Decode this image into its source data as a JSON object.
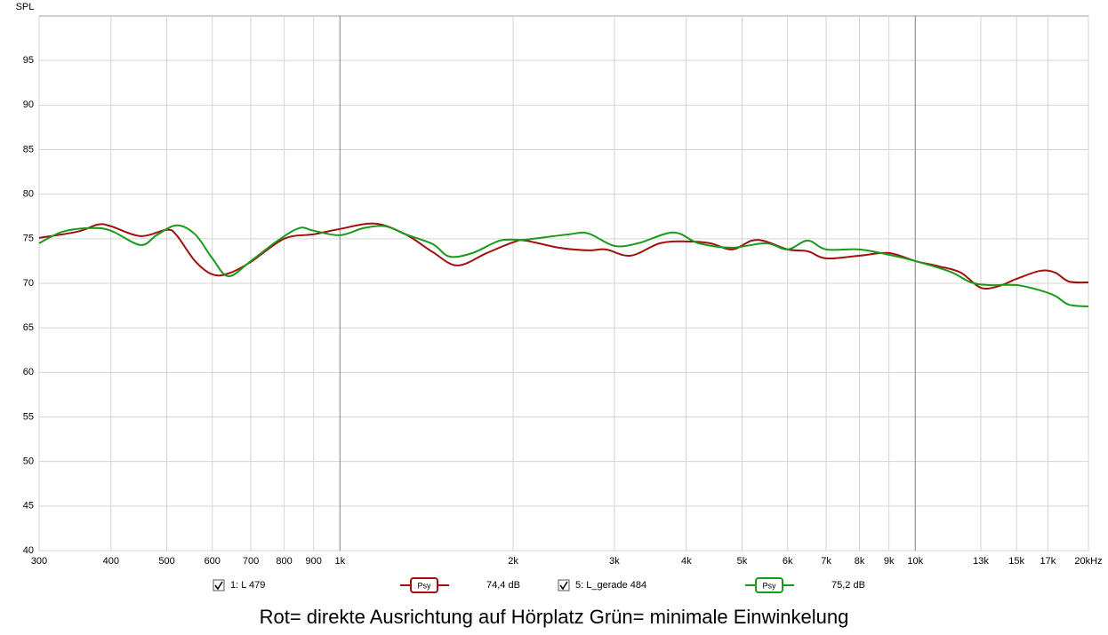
{
  "chart_data": {
    "type": "line",
    "y_label": "SPL",
    "caption": "Rot= direkte Ausrichtung auf Hörplatz Grün= minimale Einwinkelung",
    "log_x": true,
    "grid": true,
    "xlim": [
      300,
      20000
    ],
    "ylim": [
      40,
      100
    ],
    "xticks": [
      300,
      400,
      500,
      600,
      700,
      800,
      900,
      {
        "value": 1000,
        "label": "1k"
      },
      {
        "value": 2000,
        "label": "2k"
      },
      {
        "value": 3000,
        "label": "3k"
      },
      {
        "value": 4000,
        "label": "4k"
      },
      {
        "value": 5000,
        "label": "5k"
      },
      {
        "value": 6000,
        "label": "6k"
      },
      {
        "value": 7000,
        "label": "7k"
      },
      {
        "value": 8000,
        "label": "8k"
      },
      {
        "value": 9000,
        "label": "9k"
      },
      {
        "value": 10000,
        "label": "10k"
      },
      {
        "value": 13000,
        "label": "13k"
      },
      {
        "value": 15000,
        "label": "15k"
      },
      {
        "value": 17000,
        "label": "17k"
      },
      {
        "value": 20000,
        "label": "20kHz"
      }
    ],
    "yticks": [
      40,
      45,
      50,
      55,
      60,
      65,
      70,
      75,
      80,
      85,
      90,
      95
    ],
    "series": [
      {
        "name": "1: L 479",
        "color": "#a01010",
        "smoothing": "Psy",
        "level": "74,4 dB",
        "x": [
          300,
          350,
          380,
          400,
          450,
          500,
          520,
          560,
          600,
          640,
          700,
          800,
          900,
          1000,
          1150,
          1300,
          1450,
          1600,
          1800,
          2000,
          2100,
          2400,
          2700,
          2900,
          3200,
          3600,
          4000,
          4400,
          4800,
          5200,
          5500,
          6000,
          6500,
          7000,
          8000,
          9000,
          10000,
          11000,
          12000,
          13000,
          14000,
          15000,
          16500,
          17500,
          18500,
          20000
        ],
        "values": [
          75.1,
          75.8,
          76.6,
          76.4,
          75.3,
          76.0,
          75.4,
          72.5,
          71.0,
          71.1,
          72.4,
          75.0,
          75.5,
          76.1,
          76.7,
          75.5,
          73.5,
          72.0,
          73.4,
          74.6,
          74.8,
          74.0,
          73.7,
          73.8,
          73.1,
          74.5,
          74.7,
          74.5,
          73.8,
          74.8,
          74.7,
          73.8,
          73.6,
          72.8,
          73.1,
          73.4,
          72.5,
          71.9,
          71.2,
          69.5,
          69.7,
          70.5,
          71.4,
          71.2,
          70.2,
          70.1
        ]
      },
      {
        "name": "5: L_gerade 484",
        "color": "#1a9a1a",
        "smoothing": "Psy",
        "level": "75,2 dB",
        "x": [
          300,
          330,
          370,
          400,
          450,
          480,
          520,
          560,
          600,
          640,
          700,
          780,
          850,
          900,
          1000,
          1100,
          1200,
          1300,
          1450,
          1550,
          1700,
          1900,
          2100,
          2500,
          2700,
          3000,
          3300,
          3800,
          4200,
          4800,
          5500,
          6000,
          6500,
          7000,
          8000,
          9000,
          10000,
          11500,
          12500,
          13500,
          15000,
          16500,
          17500,
          18500,
          20000
        ],
        "values": [
          74.5,
          75.8,
          76.2,
          75.9,
          74.3,
          75.4,
          76.5,
          75.5,
          72.8,
          70.8,
          72.5,
          74.8,
          76.2,
          75.9,
          75.4,
          76.2,
          76.4,
          75.5,
          74.4,
          73.0,
          73.4,
          74.8,
          74.9,
          75.5,
          75.6,
          74.2,
          74.5,
          75.7,
          74.5,
          74.0,
          74.5,
          73.8,
          74.8,
          73.8,
          73.8,
          73.2,
          72.5,
          71.3,
          70.1,
          69.8,
          69.8,
          69.2,
          68.6,
          67.6,
          67.4
        ]
      }
    ]
  }
}
